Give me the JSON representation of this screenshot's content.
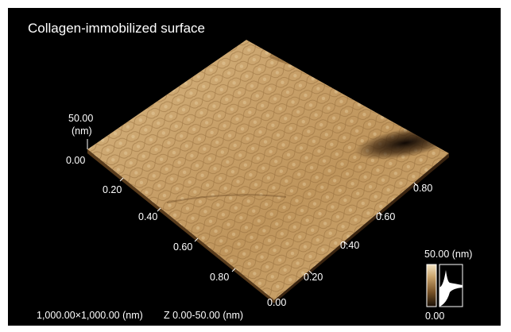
{
  "title": "Collagen-immobilized surface",
  "z_axis": {
    "max_label": "50.00",
    "unit_label": "(nm)",
    "min_label": "0.00"
  },
  "left_axis_ticks": [
    "0.20",
    "0.40",
    "0.60",
    "0.80"
  ],
  "right_axis_ticks": [
    "0.00",
    "0.20",
    "0.40",
    "0.60",
    "0.80"
  ],
  "scan_size": "1,000.00×1,000.00 (nm)",
  "z_range": "Z 0.00-50.00 (nm)",
  "color_scale": {
    "max_label": "50.00 (nm)",
    "min_label": "0.00",
    "colors": [
      "#1a0f05",
      "#7a5428",
      "#c9a36b",
      "#f3e4c4"
    ]
  },
  "surface_colors": {
    "base": "#c9a36b",
    "highlight": "#ecd6a8",
    "shadow": "#7a5428",
    "deep": "#120a04"
  }
}
